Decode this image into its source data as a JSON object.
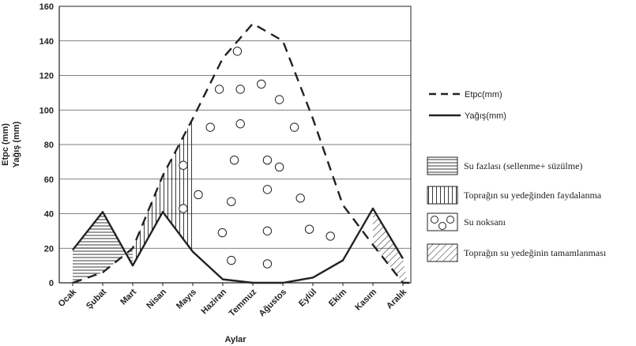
{
  "chart_data": {
    "type": "line",
    "title": "",
    "xlabel": "Aylar",
    "ylabel_line1": "Etpc (mm)",
    "ylabel_line2": "Yağış (mm)",
    "ylim": [
      0,
      160
    ],
    "yticks": [
      0,
      20,
      40,
      60,
      80,
      100,
      120,
      140,
      160
    ],
    "grid": true,
    "categories": [
      "Ocak",
      "Şubat",
      "Mart",
      "Nisan",
      "Mayıs",
      "Haziran",
      "Temmuz",
      "Ağustos",
      "Eylül",
      "Ekim",
      "Kasım",
      "Aralık"
    ],
    "series": [
      {
        "name": "Etpc(mm)",
        "style": "dashed",
        "values": [
          0,
          6,
          20,
          62,
          95,
          130,
          150,
          140,
          95,
          45,
          22,
          0
        ]
      },
      {
        "name": "Yağış(mm)",
        "style": "solid",
        "values": [
          19,
          41,
          10,
          41,
          18,
          2,
          0,
          0,
          3,
          13,
          43,
          14
        ]
      }
    ],
    "legend": {
      "placement": "right",
      "lines": [
        {
          "label": "Etpc(mm)",
          "style": "dashed"
        },
        {
          "label": "Yağış(mm)",
          "style": "solid"
        }
      ],
      "regions": [
        {
          "label": "Su fazlası (sellenme+ süzülme)",
          "pattern": "hlines"
        },
        {
          "label": "Toprağın su yedeğinden faydalanma",
          "pattern": "vlines"
        },
        {
          "label": "Su noksanı",
          "pattern": "circles"
        },
        {
          "label": "Toprağın su yedeğinin tamamlanması",
          "pattern": "diagonal"
        }
      ]
    },
    "colors": {
      "line": "#222222",
      "grid": "#555555",
      "background": "#ffffff"
    }
  }
}
